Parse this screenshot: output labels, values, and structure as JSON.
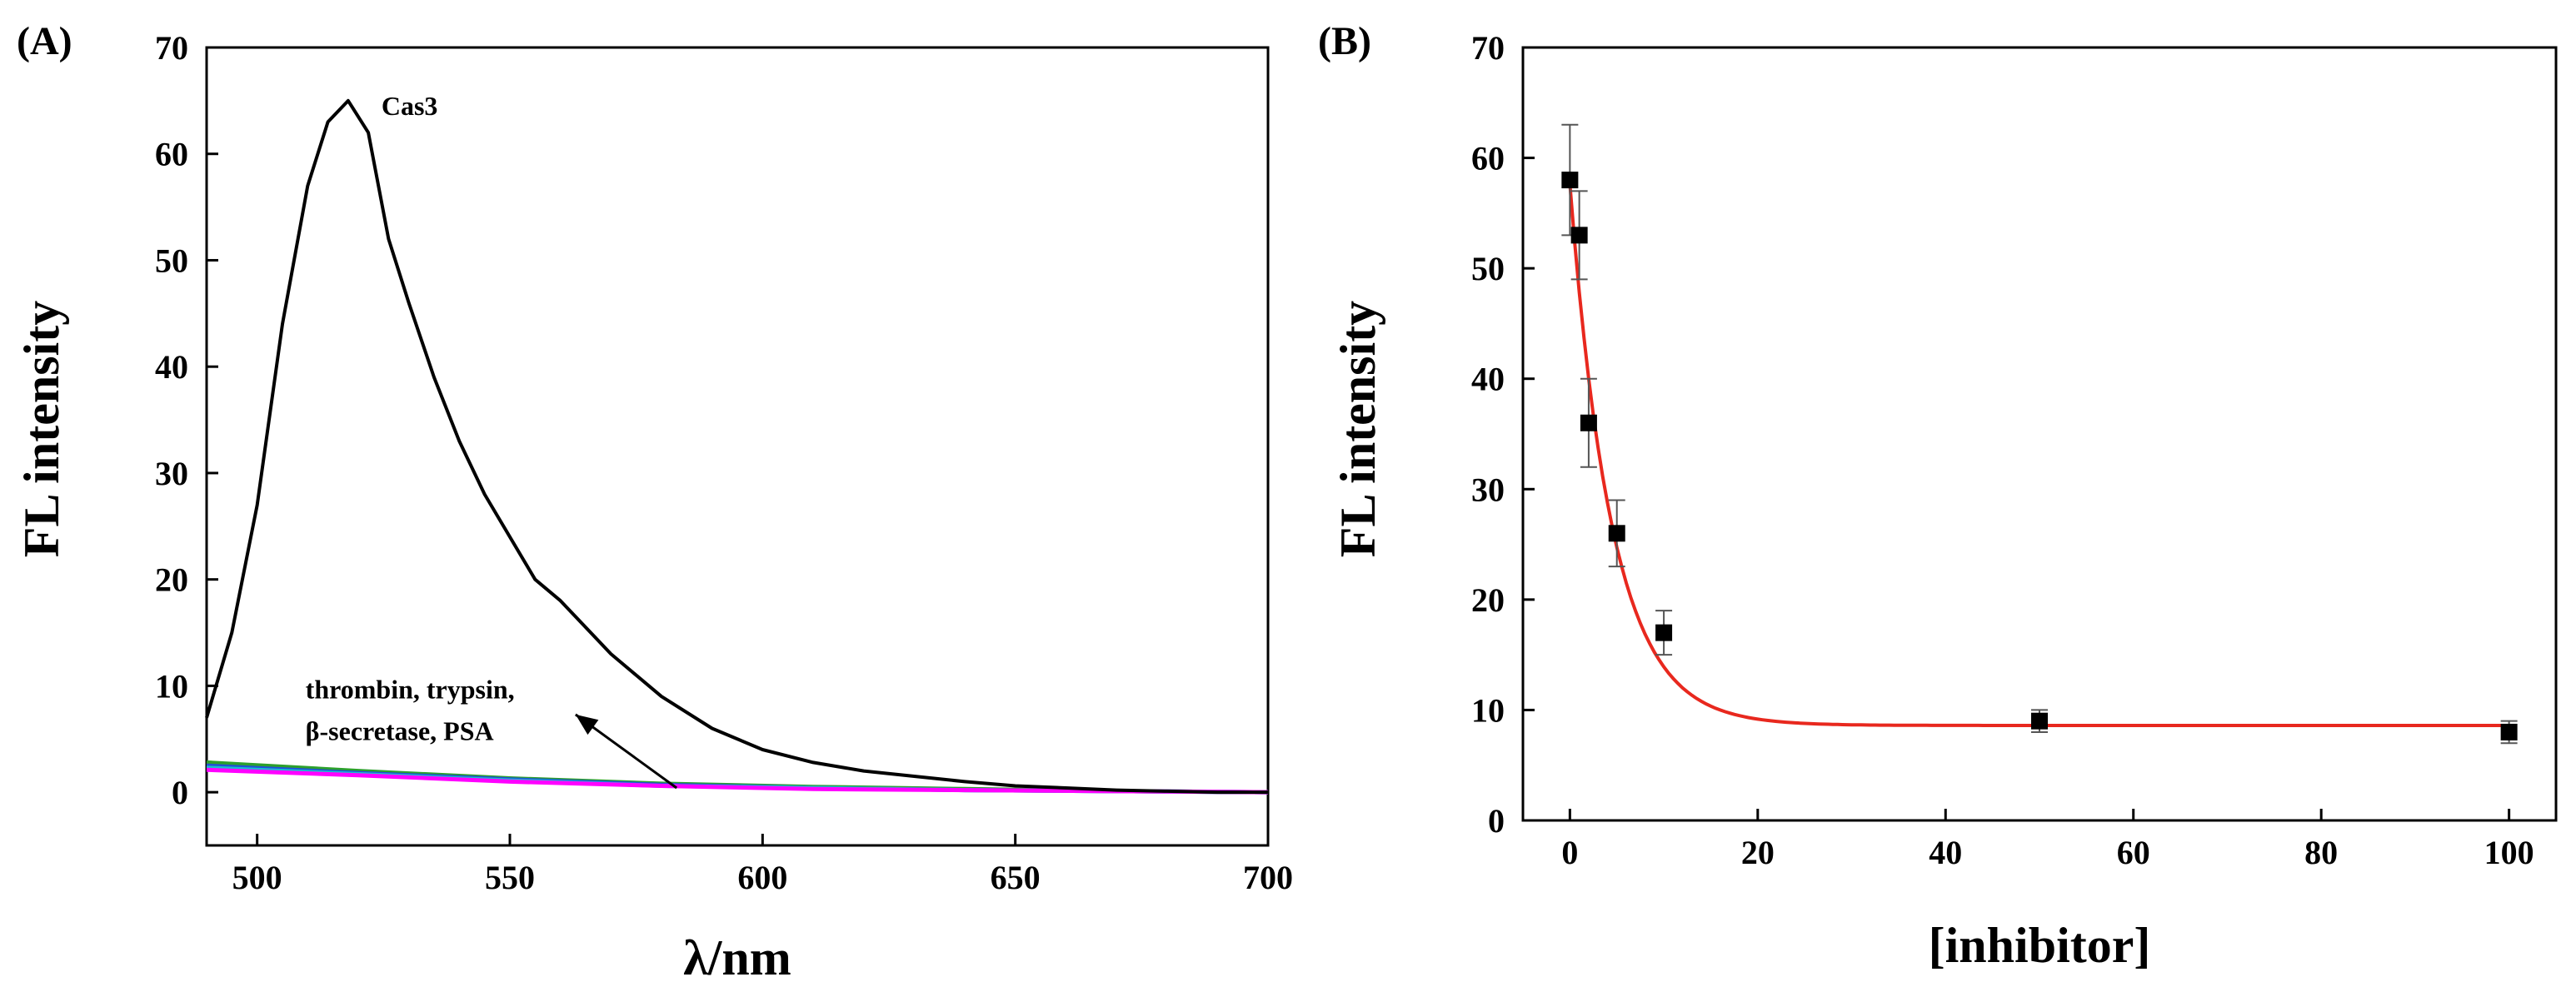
{
  "chart_data": [
    {
      "panel": "(A)",
      "type": "line",
      "xlabel": "λ/nm",
      "ylabel": "FL intensity",
      "xlim": [
        490,
        700
      ],
      "ylim": [
        -5,
        70
      ],
      "xticks": [
        500,
        550,
        600,
        650,
        700
      ],
      "yticks": [
        0,
        10,
        20,
        30,
        40,
        50,
        60,
        70
      ],
      "series": [
        {
          "name": "Cas3",
          "color": "#000000",
          "x": [
            490,
            495,
            500,
            505,
            510,
            514,
            518,
            522,
            526,
            530,
            535,
            540,
            545,
            550,
            555,
            560,
            570,
            580,
            590,
            600,
            610,
            620,
            630,
            640,
            650,
            660,
            670,
            680,
            690,
            700
          ],
          "y": [
            7,
            15,
            27,
            44,
            57,
            63,
            65,
            62,
            52,
            46,
            39,
            33,
            28,
            24,
            20,
            18,
            13,
            9,
            6,
            4,
            2.8,
            2,
            1.5,
            1,
            0.6,
            0.4,
            0.2,
            0.1,
            0,
            0
          ]
        },
        {
          "name": "thrombin",
          "color": "#2ca02c",
          "x": [
            490,
            520,
            550,
            580,
            610,
            640,
            670,
            700
          ],
          "y": [
            2.8,
            2,
            1.3,
            0.8,
            0.5,
            0.3,
            0.1,
            0
          ]
        },
        {
          "name": "trypsin",
          "color": "#1f4fd8",
          "x": [
            490,
            520,
            550,
            580,
            610,
            640,
            670,
            700
          ],
          "y": [
            2.5,
            1.8,
            1.2,
            0.7,
            0.4,
            0.2,
            0.1,
            0
          ]
        },
        {
          "name": "β-secretase",
          "color": "#17becf",
          "x": [
            490,
            520,
            550,
            580,
            610,
            640,
            670,
            700
          ],
          "y": [
            2.3,
            1.7,
            1.1,
            0.6,
            0.4,
            0.2,
            0.1,
            0
          ]
        },
        {
          "name": "PSA",
          "color": "#ff00ff",
          "x": [
            490,
            520,
            550,
            580,
            610,
            640,
            670,
            700
          ],
          "y": [
            2.1,
            1.6,
            1.0,
            0.6,
            0.3,
            0.2,
            0.1,
            0
          ]
        }
      ],
      "annotations": [
        {
          "text": "Cas3",
          "x": 518,
          "y": 66
        },
        {
          "text_lines": [
            "thrombin, trypsin,",
            "β-secretase,  PSA"
          ],
          "x": 500,
          "y": 10,
          "arrow_from": [
            583,
            0.4
          ],
          "arrow_to": [
            563,
            7.3
          ]
        }
      ]
    },
    {
      "panel": "(B)",
      "type": "scatter",
      "xlabel": "[inhibitor]",
      "ylabel": "FL intensity",
      "xlim": [
        -5,
        105
      ],
      "ylim": [
        0,
        70
      ],
      "xticks": [
        0,
        20,
        40,
        60,
        80,
        100
      ],
      "yticks": [
        0,
        10,
        20,
        30,
        40,
        50,
        60,
        70
      ],
      "series": [
        {
          "name": "data",
          "color": "#000000",
          "x": [
            0,
            1,
            2,
            5,
            10,
            50,
            100
          ],
          "y": [
            58,
            53,
            36,
            26,
            17,
            9,
            8
          ],
          "error": [
            5,
            4,
            4,
            3,
            2,
            1,
            1
          ]
        },
        {
          "name": "fit",
          "color": "#e8281e",
          "type": "exponential-decay",
          "y0": 8.6,
          "A": 49,
          "t": 4.5
        }
      ]
    }
  ]
}
